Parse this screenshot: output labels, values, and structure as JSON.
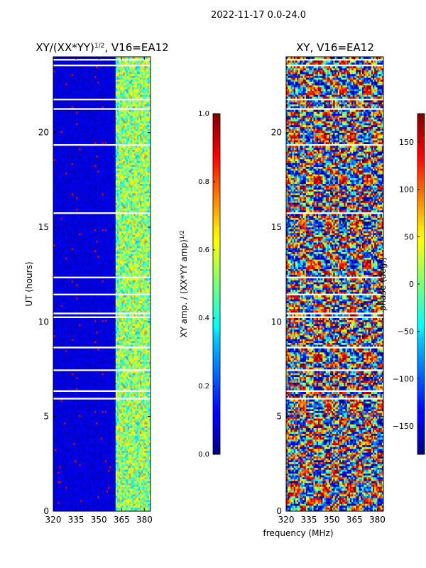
{
  "suptitle": "2022-11-17 0.0-24.0",
  "chart_data": [
    {
      "type": "heatmap",
      "title_prefix": "XY/(XX*YY)",
      "title_exp": "1/2",
      "title_suffix": ", V16=EA12",
      "xlabel": "",
      "ylabel": "UT (hours)",
      "xlim": [
        320,
        384
      ],
      "ylim": [
        0,
        24
      ],
      "xticks": [
        320,
        335,
        350,
        365,
        380
      ],
      "yticks": [
        0,
        5,
        10,
        15,
        20
      ],
      "band_start": 361,
      "colorbar": {
        "label_prefix": "XY amp. / (XX*YY amp)",
        "label_exp": "1/2",
        "range": [
          0.0,
          1.0
        ],
        "ticks": [
          "0.0",
          "0.2",
          "0.4",
          "0.6",
          "0.8",
          "1.0"
        ]
      }
    },
    {
      "type": "heatmap",
      "title": "XY, V16=EA12",
      "xlabel": "frequency (MHz)",
      "ylabel": "",
      "xlim": [
        320,
        384
      ],
      "ylim": [
        0,
        24
      ],
      "xticks": [
        320,
        335,
        350,
        365,
        380
      ],
      "yticks": [
        0,
        5,
        10,
        15,
        20
      ],
      "colorbar": {
        "label": "phase (deg.)",
        "range": [
          -180,
          180
        ],
        "ticks": [
          "150",
          "100",
          "50",
          "0",
          "−50",
          "−100",
          "−150"
        ]
      }
    }
  ]
}
